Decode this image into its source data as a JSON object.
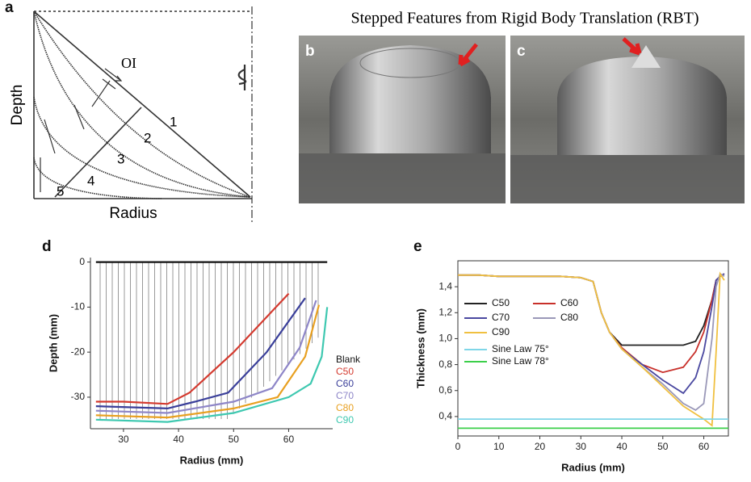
{
  "panel_a": {
    "letter": "a",
    "y_label": "Depth",
    "x_label": "Radius",
    "annotation": "OI",
    "region_labels": [
      "1",
      "2",
      "3",
      "4",
      "5"
    ]
  },
  "photo_caption": "Stepped Features from Rigid Body Translation (RBT)",
  "panel_b": {
    "letter": "b"
  },
  "panel_c": {
    "letter": "c"
  },
  "chart_data": [
    {
      "type": "line",
      "label": "d",
      "x_label": "Radius (mm)",
      "y_label": "Depth (mm)",
      "xlim": [
        24,
        68
      ],
      "ylim": [
        -37,
        1
      ],
      "xticks": [
        30,
        40,
        50,
        60
      ],
      "yticks": [
        0,
        -10,
        -20,
        -30
      ],
      "legend": "right",
      "series": [
        {
          "name": "Blank",
          "color": "#111111",
          "x": [
            25,
            67
          ],
          "values": [
            0,
            0
          ]
        },
        {
          "name": "C50",
          "color": "#d43a2f",
          "x": [
            25,
            30,
            38,
            42,
            50,
            60
          ],
          "values": [
            -31,
            -31,
            -31.5,
            -29,
            -20,
            -7
          ]
        },
        {
          "name": "C60",
          "color": "#3a3f9a",
          "x": [
            25,
            38,
            43,
            49,
            56,
            63
          ],
          "values": [
            -32,
            -32.5,
            -31,
            -29,
            -20,
            -8
          ]
        },
        {
          "name": "C70",
          "color": "#8e86c8",
          "x": [
            25,
            38,
            50,
            57,
            62,
            65
          ],
          "values": [
            -33,
            -33.5,
            -31,
            -28,
            -19,
            -8.5
          ]
        },
        {
          "name": "C80",
          "color": "#e8a020",
          "x": [
            25,
            38,
            50,
            58,
            63,
            65.5
          ],
          "values": [
            -34,
            -34.5,
            -32.5,
            -30,
            -21,
            -9.5
          ]
        },
        {
          "name": "C90",
          "color": "#3ec8b0",
          "x": [
            25,
            38,
            50,
            60,
            64,
            66,
            67
          ],
          "values": [
            -35,
            -35.5,
            -33.5,
            -30,
            -27,
            -21,
            -10
          ]
        }
      ]
    },
    {
      "type": "line",
      "label": "e",
      "x_label": "Radius (mm)",
      "y_label": "Thickness (mm)",
      "xlim": [
        0,
        66
      ],
      "ylim": [
        0.25,
        1.6
      ],
      "xticks": [
        0,
        10,
        20,
        30,
        40,
        50,
        60
      ],
      "yticks": [
        {
          "value": 0.4,
          "label": "0,4"
        },
        {
          "value": 0.6,
          "label": "0,6"
        },
        {
          "value": 0.8,
          "label": "0,8"
        },
        {
          "value": 1.0,
          "label": "1,0"
        },
        {
          "value": 1.2,
          "label": "1,2"
        },
        {
          "value": 1.4,
          "label": "1,4"
        }
      ],
      "legend": "upper left",
      "x": [
        0,
        5,
        10,
        15,
        20,
        25,
        30,
        33,
        35,
        37,
        40,
        45,
        50,
        55,
        58,
        60,
        62,
        63,
        64,
        65
      ],
      "series": [
        {
          "name": "C50",
          "color": "#222222",
          "values": [
            1.49,
            1.49,
            1.48,
            1.48,
            1.48,
            1.48,
            1.47,
            1.44,
            1.2,
            1.05,
            0.95,
            0.95,
            0.95,
            0.95,
            0.98,
            1.1,
            1.3,
            1.45,
            1.48,
            1.5
          ]
        },
        {
          "name": "C60",
          "color": "#c8302a",
          "values": [
            1.49,
            1.49,
            1.48,
            1.48,
            1.48,
            1.48,
            1.47,
            1.44,
            1.2,
            1.05,
            0.93,
            0.8,
            0.74,
            0.78,
            0.9,
            1.05,
            1.3,
            1.45,
            1.48,
            1.5
          ]
        },
        {
          "name": "C70",
          "color": "#4a48a0",
          "values": [
            1.49,
            1.49,
            1.48,
            1.48,
            1.48,
            1.48,
            1.47,
            1.44,
            1.2,
            1.05,
            0.92,
            0.8,
            0.68,
            0.58,
            0.7,
            0.9,
            1.25,
            1.45,
            1.48,
            1.5
          ]
        },
        {
          "name": "C80",
          "color": "#9a98b8",
          "values": [
            1.49,
            1.49,
            1.48,
            1.48,
            1.48,
            1.48,
            1.47,
            1.44,
            1.2,
            1.05,
            0.92,
            0.78,
            0.65,
            0.5,
            0.45,
            0.5,
            1.0,
            1.4,
            1.5,
            1.48
          ]
        },
        {
          "name": "C90",
          "color": "#f0c040",
          "values": [
            1.49,
            1.49,
            1.48,
            1.48,
            1.48,
            1.48,
            1.47,
            1.44,
            1.2,
            1.05,
            0.92,
            0.78,
            0.63,
            0.48,
            0.42,
            0.38,
            0.33,
            0.9,
            1.5,
            1.45
          ]
        },
        {
          "name": "Sine Law 75°",
          "color": "#7fd6e8",
          "x": [
            0,
            66
          ],
          "values": [
            0.38,
            0.38
          ]
        },
        {
          "name": "Sine Law 78°",
          "color": "#3ccf4a",
          "x": [
            0,
            66
          ],
          "values": [
            0.31,
            0.31
          ]
        }
      ]
    }
  ]
}
